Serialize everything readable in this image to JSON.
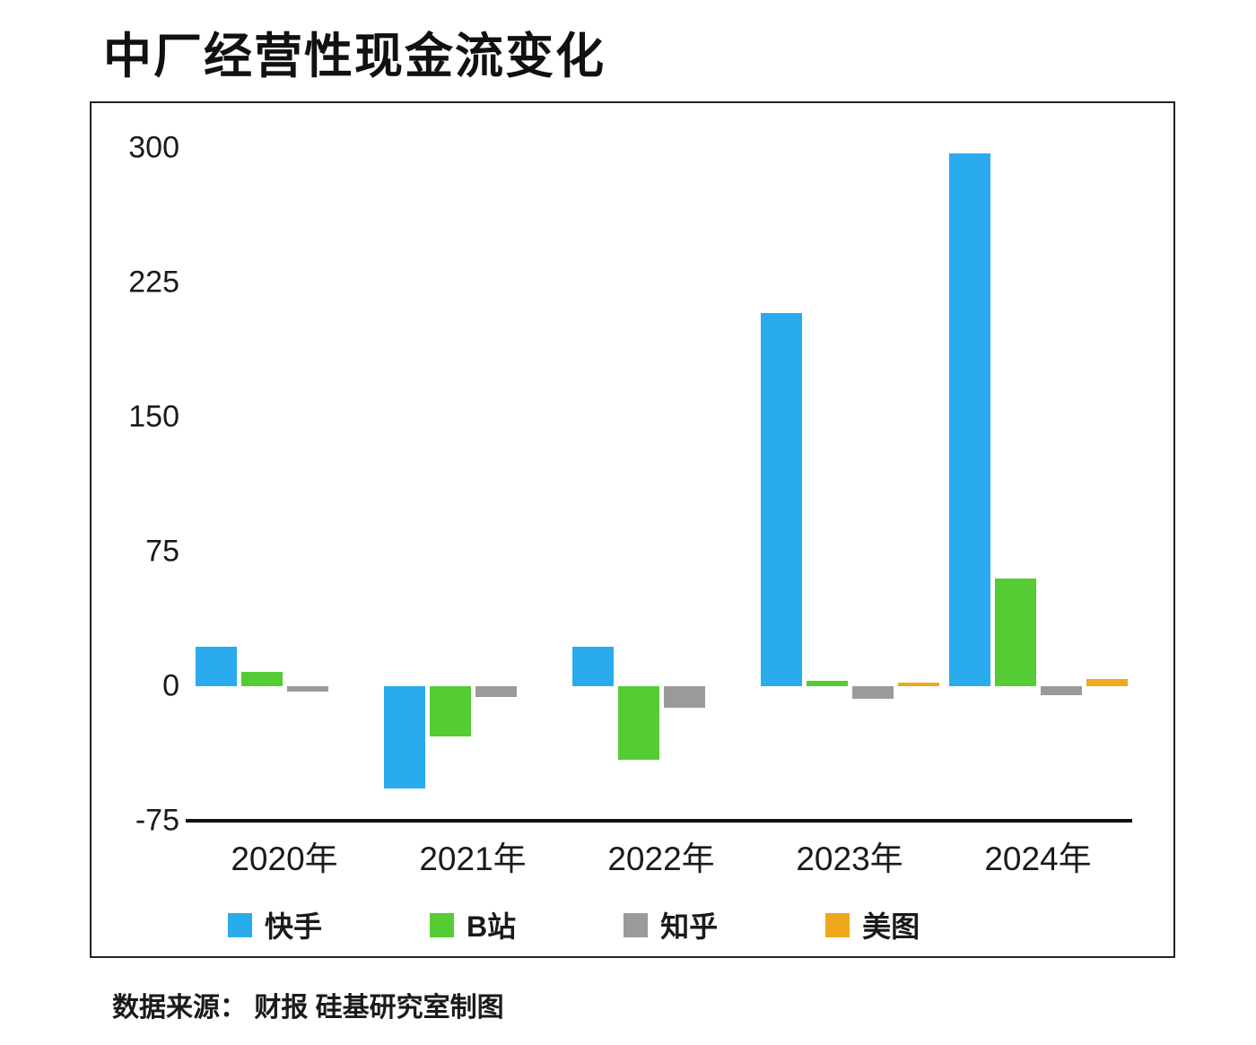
{
  "title": "中厂经营性现金流变化",
  "footer": "数据来源： 财报 硅基研究室制图",
  "chart_data": {
    "type": "bar",
    "title": "中厂经营性现金流变化",
    "categories": [
      "2020年",
      "2021年",
      "2022年",
      "2023年",
      "2024年"
    ],
    "series": [
      {
        "name": "快手",
        "color": "#29ABEE",
        "values": [
          22,
          -57,
          22,
          208,
          297
        ]
      },
      {
        "name": "B站",
        "color": "#55CC33",
        "values": [
          8,
          -28,
          -41,
          3,
          60
        ]
      },
      {
        "name": "知乎",
        "color": "#9A9A9A",
        "values": [
          -3,
          -6,
          -12,
          -7,
          -5
        ]
      },
      {
        "name": "美图",
        "color": "#F0A81E",
        "values": [
          0,
          0,
          0,
          2,
          4
        ]
      }
    ],
    "y_ticks": [
      300,
      225,
      150,
      75,
      0,
      -75
    ],
    "ylim": [
      -75,
      310
    ],
    "xlabel": "",
    "ylabel": "",
    "grid": false,
    "legend_position": "bottom-inside"
  }
}
